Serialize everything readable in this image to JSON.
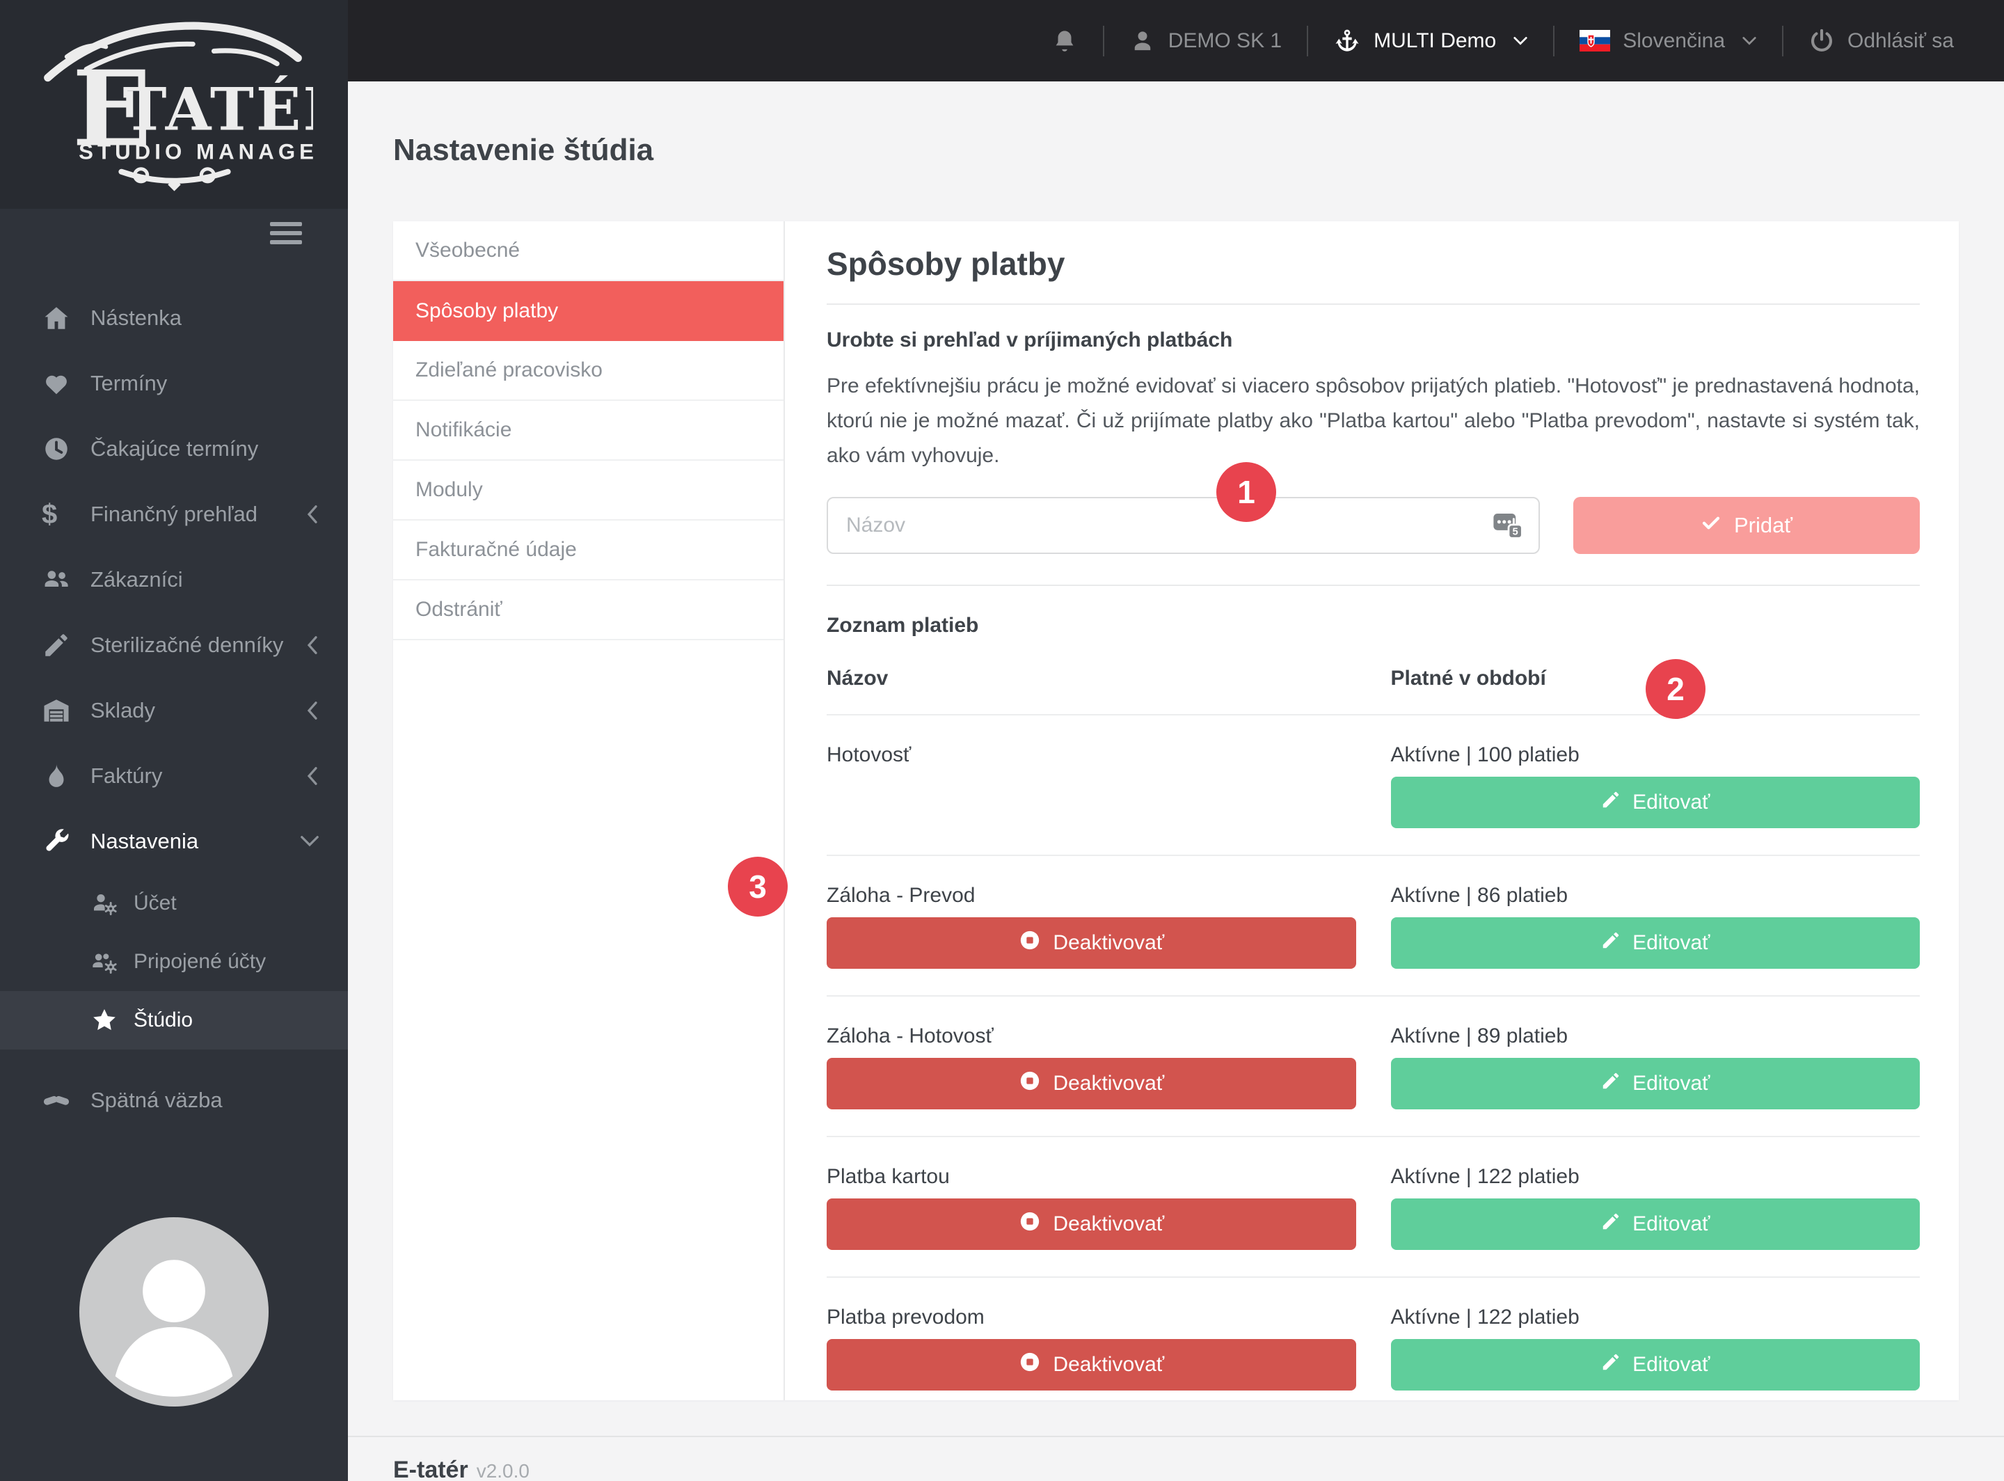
{
  "topbar": {
    "user": "DEMO SK 1",
    "studio": "MULTI Demo",
    "language": "Slovenčina",
    "logout": "Odhlásiť sa"
  },
  "logo": {
    "title": "ETATÉR",
    "subtitle": "STUDIO MANAGER"
  },
  "sidebar": {
    "items": [
      {
        "label": "Nástenka",
        "icon": "home-icon"
      },
      {
        "label": "Termíny",
        "icon": "heart-icon"
      },
      {
        "label": "Čakajúce termíny",
        "icon": "clock-icon"
      },
      {
        "label": "Finančný prehľad",
        "icon": "dollar-icon",
        "chevron": "left"
      },
      {
        "label": "Zákazníci",
        "icon": "users-icon"
      },
      {
        "label": "Sterilizačné denníky",
        "icon": "pencil-icon",
        "chevron": "left"
      },
      {
        "label": "Sklady",
        "icon": "warehouse-icon",
        "chevron": "left"
      },
      {
        "label": "Faktúry",
        "icon": "flame-icon",
        "chevron": "left"
      },
      {
        "label": "Nastavenia",
        "icon": "wrench-icon",
        "chevron": "down",
        "highlight": true
      },
      {
        "label": "Účet",
        "icon": "user-gear-icon",
        "sub": true
      },
      {
        "label": "Pripojené účty",
        "icon": "users-gear-icon",
        "sub": true
      },
      {
        "label": "Štúdio",
        "icon": "star-icon",
        "sub": true,
        "active": true
      },
      {
        "label": "Spätná väzba",
        "icon": "handshake-icon",
        "feedback": true
      }
    ]
  },
  "page": {
    "title": "Nastavenie štúdia"
  },
  "tabs": [
    {
      "label": "Všeobecné",
      "active": false
    },
    {
      "label": "Spôsoby platby",
      "active": true
    },
    {
      "label": "Zdieľané pracovisko",
      "active": false
    },
    {
      "label": "Notifikácie",
      "active": false
    },
    {
      "label": "Moduly",
      "active": false
    },
    {
      "label": "Fakturačné údaje",
      "active": false
    },
    {
      "label": "Odstrániť",
      "active": false
    }
  ],
  "content": {
    "heading": "Spôsoby platby",
    "subtitle": "Urobte si prehľad v príjimaných platbách",
    "description": "Pre efektívnejšiu prácu je možné evidovať si viacero spôsobov prijatých platieb. \"Hotovosť\" je prednastavená hodnota, ktorú nie je možné mazať. Či už prijímate platby ako \"Platba kartou\" alebo \"Platba prevodom\", nastavte si systém tak, ako vám vyhovuje.",
    "form": {
      "name_placeholder": "Názov",
      "add_label": "Pridať"
    },
    "list_title": "Zoznam platieb",
    "columns": {
      "name": "Názov",
      "period": "Platné v období"
    },
    "actions": {
      "deactivate": "Deaktivovať",
      "edit": "Editovať"
    },
    "rows": [
      {
        "name": "Hotovosť",
        "status": "Aktívne | 100 platieb",
        "can_deactivate": false
      },
      {
        "name": "Záloha - Prevod",
        "status": "Aktívne | 86 platieb",
        "can_deactivate": true
      },
      {
        "name": "Záloha - Hotovosť",
        "status": "Aktívne | 89 platieb",
        "can_deactivate": true
      },
      {
        "name": "Platba kartou",
        "status": "Aktívne | 122 platieb",
        "can_deactivate": true
      },
      {
        "name": "Platba prevodom",
        "status": "Aktívne | 122 platieb",
        "can_deactivate": true
      }
    ]
  },
  "annotations": [
    "1",
    "2",
    "3"
  ],
  "footer": {
    "brand": "E-tatér",
    "version": "v2.0.0"
  },
  "colors": {
    "active_tab": "#f25f5c",
    "add_button": "#f99d9b",
    "deactivate_button": "#d2544e",
    "edit_button": "#5fce9b",
    "badge": "#e8434e",
    "sidebar_bg": "#2f333a",
    "topbar_bg": "#232327"
  }
}
